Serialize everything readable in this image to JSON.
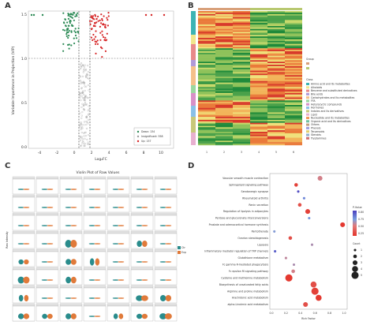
{
  "panels": {
    "a": {
      "letter": "A",
      "xlabel": "Log₂FC",
      "ylabel": "Variable Importance in Projection (VIP)",
      "x_ticks": [
        "-4",
        "-2",
        "0",
        "2",
        "4",
        "6",
        "8",
        "10"
      ],
      "y_ticks": [
        "1.5",
        "1.0",
        "0.5",
        "0.0"
      ],
      "legend": [
        {
          "label": "Down: 134",
          "color": "#2e8b57"
        },
        {
          "label": "Insignificant: 558",
          "color": "#9a9a9a"
        },
        {
          "label": "Up: 157",
          "color": "#d62728"
        }
      ]
    },
    "b": {
      "letter": "B",
      "legend_titles": [
        "Group",
        "Class"
      ],
      "legend_items": [
        "Amino acid and Its metabolites",
        "Alkaloids",
        "Benzene and substituted derivatives",
        "Bile acids",
        "Carbohydrates and Its metabolites",
        "FFA",
        "Heterocyclic compounds",
        "Hormones",
        "Indoles and its derivatives",
        "Lipid",
        "Nucleotide and Its metabolites",
        "Organic acid and Its derivatives",
        "Others",
        "Phenols",
        "Terpenoids",
        "Steroids",
        "Tryptamines"
      ],
      "x_ticks": [
        "1",
        "2",
        "3",
        "4",
        "5",
        "6"
      ]
    },
    "c": {
      "letter": "C",
      "title": "Violin Plot of Raw Values",
      "ylabel": "Raw Intensity",
      "legend": [
        "Ctr",
        "Exp"
      ]
    },
    "d": {
      "letter": "D",
      "xlabel": "Rich Factor",
      "x_ticks": [
        "0.0",
        "0.2",
        "0.4",
        "0.6",
        "0.8",
        "1.0"
      ],
      "pathways": [
        "Vascular smooth muscle contraction",
        "Sphingolipid signaling pathway",
        "Serotonergic synapse",
        "Rheumatoid arthritis",
        "Renin secretion",
        "Regulation of lipolysis in adipocytes",
        "Pentose and glucuronate interconversions",
        "Prostate and adrenocortical hormone synthesis",
        "Pantothenate",
        "Ovarian steroidogenesis",
        "Lipolysis",
        "Inflammatory mediator regulation of TRP channels",
        "Glutathione metabolism",
        "Fc gamma R-mediated phagocytosis",
        "Fc epsilon RI signaling pathway",
        "Cysteine and methionine metabolism",
        "Biosynthesis of unsaturated fatty acids",
        "Arginine and proline metabolism",
        "Arachidonic acid metabolism",
        "alpha-Linolenic acid metabolism"
      ],
      "points": [
        {
          "x": 0.67,
          "p": 0.3,
          "count": 3
        },
        {
          "x": 0.34,
          "p": 0.05,
          "count": 2
        },
        {
          "x": 0.37,
          "p": 0.75,
          "count": 1
        },
        {
          "x": 0.45,
          "p": 0.6,
          "count": 1
        },
        {
          "x": 0.39,
          "p": 0.1,
          "count": 2
        },
        {
          "x": 0.5,
          "p": 0.05,
          "count": 3
        },
        {
          "x": 0.52,
          "p": 0.55,
          "count": 1
        },
        {
          "x": 0.98,
          "p": 0.02,
          "count": 3
        },
        {
          "x": 0.04,
          "p": 0.5,
          "count": 1
        },
        {
          "x": 0.26,
          "p": 0.1,
          "count": 2
        },
        {
          "x": 0.56,
          "p": 0.4,
          "count": 1
        },
        {
          "x": 0.05,
          "p": 0.7,
          "count": 1
        },
        {
          "x": 0.2,
          "p": 0.35,
          "count": 1
        },
        {
          "x": 0.31,
          "p": 0.4,
          "count": 1
        },
        {
          "x": 0.3,
          "p": 0.3,
          "count": 2
        },
        {
          "x": 0.24,
          "p": 0.02,
          "count": 5
        },
        {
          "x": 0.58,
          "p": 0.1,
          "count": 4
        },
        {
          "x": 0.6,
          "p": 0.05,
          "count": 5
        },
        {
          "x": 0.65,
          "p": 0.02,
          "count": 4
        },
        {
          "x": 0.47,
          "p": 0.1,
          "count": 3
        }
      ],
      "pvalue_title": "P-Value",
      "pvalue_ticks": [
        "0.80",
        "0.75",
        "0.50",
        "0.25"
      ],
      "count_title": "Count",
      "count_ticks": [
        "1",
        "2",
        "3",
        "4",
        "5"
      ]
    }
  }
}
